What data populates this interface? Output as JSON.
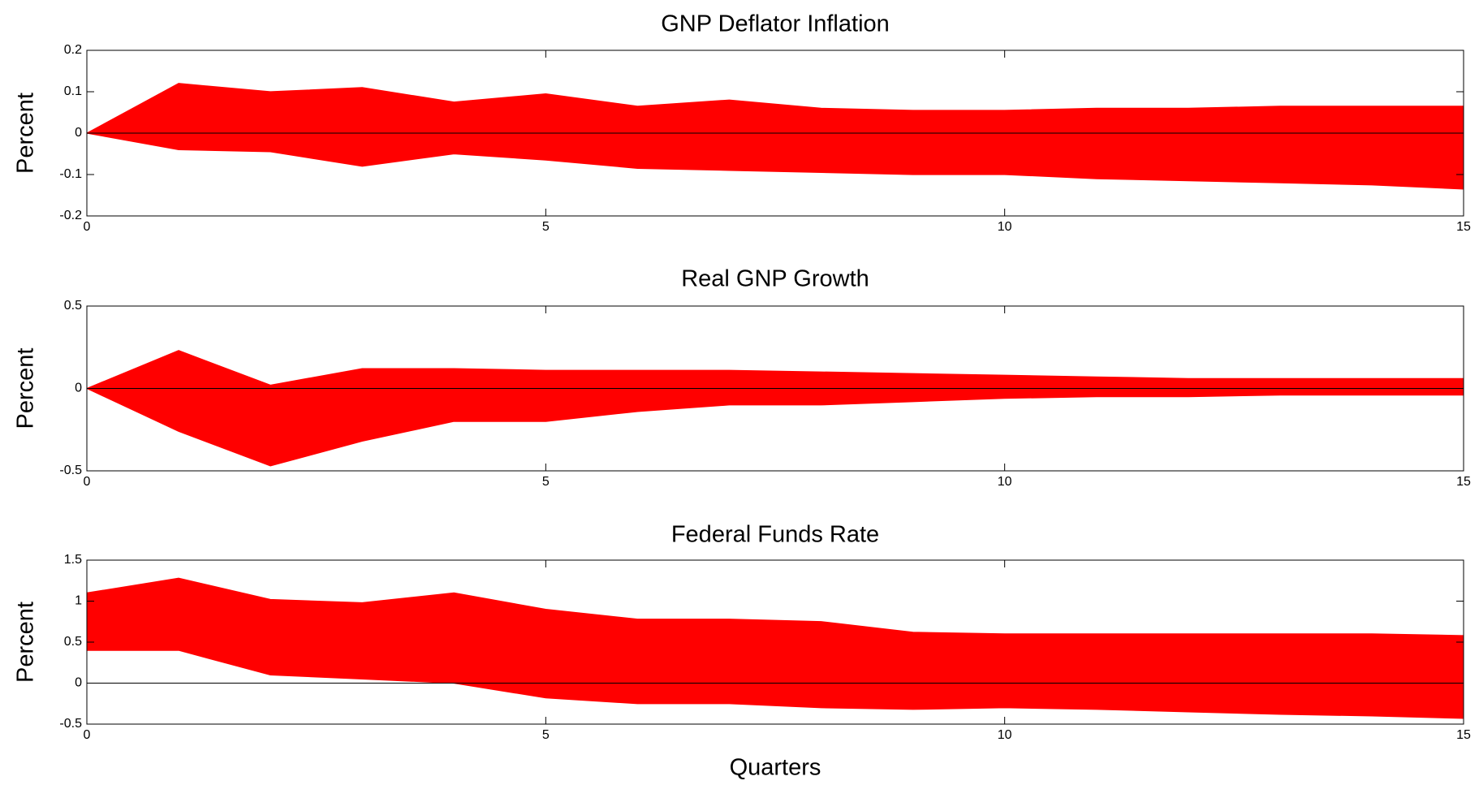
{
  "chart_data": [
    {
      "type": "line",
      "title": "GNP Deflator Inflation",
      "ylabel": "Percent",
      "x": [
        0,
        1,
        2,
        3,
        4,
        5,
        6,
        7,
        8,
        9,
        10,
        11,
        12,
        13,
        14,
        15
      ],
      "series": [
        {
          "color": "#ff0000",
          "values": [
            0,
            0.12,
            0.1,
            0.11,
            0.075,
            0.095,
            0.065,
            0.08,
            0.06,
            0.055,
            0.055,
            0.06,
            0.06,
            0.065,
            0.065,
            0.065
          ]
        },
        {
          "color": "#ff0000",
          "values": [
            0,
            -0.04,
            -0.045,
            -0.08,
            -0.05,
            -0.065,
            -0.085,
            -0.09,
            -0.095,
            -0.1,
            -0.1,
            -0.11,
            -0.115,
            -0.12,
            -0.125,
            -0.135
          ]
        }
      ],
      "xlim": [
        0,
        15
      ],
      "xticks": [
        0,
        5,
        10,
        15
      ],
      "ylim": [
        -0.2,
        0.2
      ],
      "yticks": [
        -0.2,
        -0.1,
        0,
        0.1,
        0.2
      ]
    },
    {
      "type": "line",
      "title": "Real GNP Growth",
      "ylabel": "Percent",
      "x": [
        0,
        1,
        2,
        3,
        4,
        5,
        6,
        7,
        8,
        9,
        10,
        11,
        12,
        13,
        14,
        15
      ],
      "series": [
        {
          "color": "#ff0000",
          "values": [
            0,
            0.23,
            0.02,
            0.12,
            0.12,
            0.11,
            0.11,
            0.11,
            0.1,
            0.09,
            0.08,
            0.07,
            0.06,
            0.06,
            0.06,
            0.06
          ]
        },
        {
          "color": "#ff0000",
          "values": [
            0,
            -0.26,
            -0.47,
            -0.32,
            -0.2,
            -0.2,
            -0.14,
            -0.1,
            -0.1,
            -0.08,
            -0.06,
            -0.05,
            -0.05,
            -0.04,
            -0.04,
            -0.04
          ]
        }
      ],
      "xlim": [
        0,
        15
      ],
      "xticks": [
        0,
        5,
        10,
        15
      ],
      "ylim": [
        -0.5,
        0.5
      ],
      "yticks": [
        -0.5,
        0,
        0.5
      ]
    },
    {
      "type": "line",
      "title": "Federal Funds Rate",
      "ylabel": "Percent",
      "xlabel": "Quarters",
      "x": [
        0,
        1,
        2,
        3,
        4,
        5,
        6,
        7,
        8,
        9,
        10,
        11,
        12,
        13,
        14,
        15
      ],
      "series": [
        {
          "color": "#ff0000",
          "values": [
            1.1,
            1.28,
            1.02,
            0.98,
            1.1,
            0.9,
            0.78,
            0.78,
            0.75,
            0.62,
            0.6,
            0.6,
            0.6,
            0.6,
            0.6,
            0.58
          ]
        },
        {
          "color": "#ff0000",
          "values": [
            0.4,
            0.4,
            0.1,
            0.05,
            0,
            -0.18,
            -0.25,
            -0.25,
            -0.3,
            -0.32,
            -0.3,
            -0.32,
            -0.35,
            -0.38,
            -0.4,
            -0.43
          ]
        }
      ],
      "xlim": [
        0,
        15
      ],
      "xticks": [
        0,
        5,
        10,
        15
      ],
      "ylim": [
        -0.5,
        1.5
      ],
      "yticks": [
        -0.5,
        0,
        0.5,
        1,
        1.5
      ]
    }
  ]
}
